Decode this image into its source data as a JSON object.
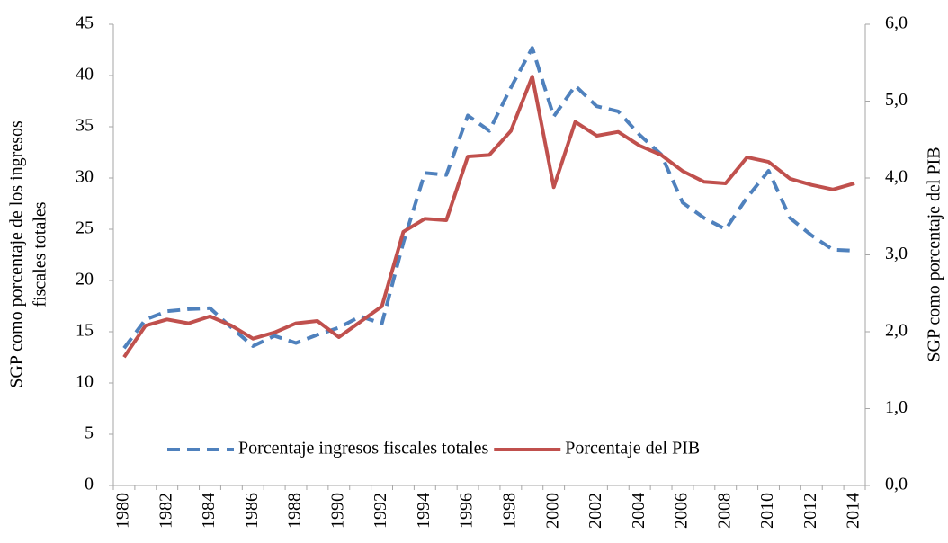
{
  "chart_data": {
    "type": "line",
    "ylabel": [
      "SGP como porcentaje de los ingresos",
      "fiscales totales"
    ],
    "y2label": "SGP como porcentaje del PIB",
    "categories": [
      "1980",
      null,
      "1982",
      null,
      "1984",
      null,
      "1986",
      null,
      "1988",
      null,
      "1990",
      null,
      "1992",
      null,
      "1994",
      null,
      "1996",
      null,
      "1998",
      null,
      "2000",
      null,
      "2002",
      null,
      "2004",
      null,
      "2006",
      null,
      "2008",
      null,
      "2010",
      null,
      "2012",
      null,
      "2014"
    ],
    "series": [
      {
        "name": "Porcentaje ingresos fiscales totales",
        "color": "#4f81bd",
        "dash": true,
        "axis": "y",
        "values": [
          13.4,
          16.2,
          17.0,
          17.2,
          17.3,
          15.4,
          13.6,
          14.6,
          13.9,
          14.7,
          15.4,
          16.5,
          15.8,
          23.7,
          30.5,
          30.3,
          36.1,
          34.6,
          38.8,
          42.7,
          36.0,
          39.0,
          37.0,
          36.5,
          34.2,
          32.3,
          27.6,
          26.1,
          25.0,
          28.1,
          30.7,
          26.1,
          24.4,
          23.0,
          22.9
        ]
      },
      {
        "name": "Porcentaje del PIB",
        "color": "#c0504d",
        "dash": false,
        "axis": "y2",
        "values": [
          1.67,
          2.08,
          2.16,
          2.11,
          2.2,
          2.08,
          1.91,
          1.99,
          2.11,
          2.14,
          1.93,
          2.13,
          2.33,
          3.3,
          3.47,
          3.45,
          4.28,
          4.3,
          4.61,
          5.32,
          3.88,
          4.73,
          4.55,
          4.6,
          4.42,
          4.3,
          4.09,
          3.95,
          3.93,
          4.27,
          4.21,
          3.99,
          3.91,
          3.85,
          3.93
        ]
      }
    ],
    "ylim": [
      0,
      45
    ],
    "yticks": [
      0,
      5,
      10,
      15,
      20,
      25,
      30,
      35,
      40,
      45
    ],
    "y2lim": [
      0,
      6
    ],
    "y2ticks": [
      {
        "value": 0,
        "label": "0,0"
      },
      {
        "value": 1,
        "label": "1,0"
      },
      {
        "value": 2,
        "label": "2,0"
      },
      {
        "value": 3,
        "label": "3,0"
      },
      {
        "value": 4,
        "label": "4,0"
      },
      {
        "value": 5,
        "label": "5,0"
      },
      {
        "value": 6,
        "label": "6,0"
      }
    ],
    "grid": false,
    "legend": "lower center"
  }
}
